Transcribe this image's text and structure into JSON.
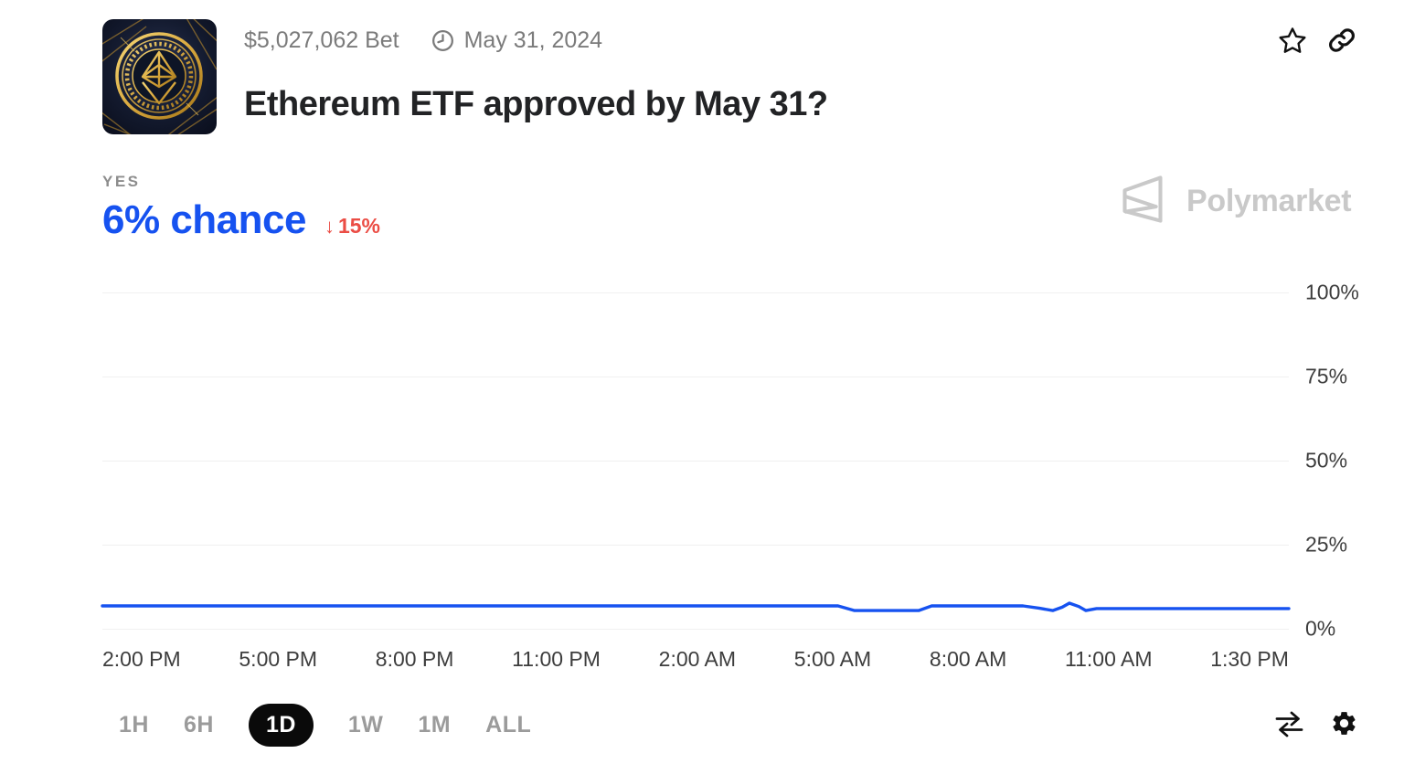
{
  "header": {
    "bet_amount": "$5,027,062 Bet",
    "date": "May 31, 2024",
    "title": "Ethereum ETF approved by May 31?"
  },
  "outcome": {
    "label": "YES",
    "chance": "6% chance",
    "change_arrow": "↓",
    "change": "15%"
  },
  "watermark": {
    "brand": "Polymarket"
  },
  "icons": {
    "clock": "clock-icon",
    "star": "star-icon",
    "link": "link-icon",
    "swap": "swap-arrows-icon",
    "gear": "gear-icon"
  },
  "chart_data": {
    "type": "line",
    "title": "Yes probability over 1 day",
    "series": [
      {
        "name": "YES",
        "points_time_fraction_pct": [
          [
            0.0,
            6.8
          ],
          [
            0.62,
            6.8
          ],
          [
            0.634,
            5.4
          ],
          [
            0.688,
            5.4
          ],
          [
            0.699,
            6.8
          ],
          [
            0.776,
            6.8
          ],
          [
            0.79,
            6.1
          ],
          [
            0.801,
            5.4
          ],
          [
            0.809,
            6.4
          ],
          [
            0.815,
            7.6
          ],
          [
            0.823,
            6.6
          ],
          [
            0.829,
            5.4
          ],
          [
            0.838,
            6.0
          ],
          [
            1.0,
            6.0
          ]
        ]
      }
    ],
    "x_ticks": [
      "2:00 PM",
      "5:00 PM",
      "8:00 PM",
      "11:00 PM",
      "2:00 AM",
      "5:00 AM",
      "8:00 AM",
      "11:00 AM",
      "1:30 PM"
    ],
    "y_ticks": [
      "100%",
      "75%",
      "50%",
      "25%",
      "0%"
    ],
    "ylim": [
      0,
      100
    ],
    "grid": "horizontal-only",
    "legend": "none",
    "line_color": "#1652f0",
    "gridline_color": "#f0f0f0"
  },
  "controls": {
    "ranges": [
      "1H",
      "6H",
      "1D",
      "1W",
      "1M",
      "ALL"
    ],
    "selected": "1D"
  },
  "colors": {
    "accent_blue": "#1652f0",
    "change_red": "#eb4d45",
    "watermark_gray": "#c9c9c9"
  }
}
